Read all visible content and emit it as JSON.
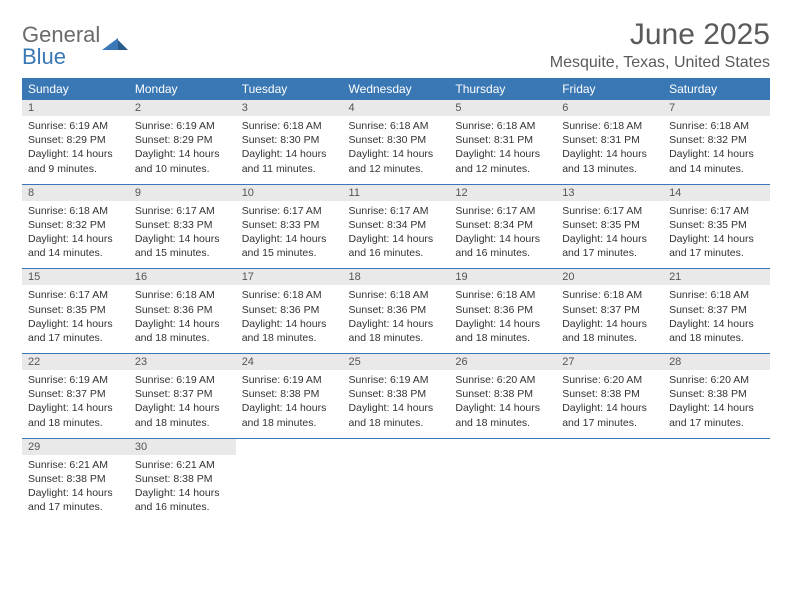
{
  "brand": {
    "part1": "General",
    "part2": "Blue"
  },
  "title": "June 2025",
  "location": "Mesquite, Texas, United States",
  "colors": {
    "header_bg": "#3a78b5",
    "header_text": "#ffffff",
    "daynum_bg": "#e9e9e9",
    "border": "#3a78b5",
    "body_text": "#333333",
    "title_text": "#5a5a5a"
  },
  "dayNames": [
    "Sunday",
    "Monday",
    "Tuesday",
    "Wednesday",
    "Thursday",
    "Friday",
    "Saturday"
  ],
  "days": [
    {
      "n": 1,
      "sr": "6:19 AM",
      "ss": "8:29 PM",
      "dl": "14 hours and 9 minutes."
    },
    {
      "n": 2,
      "sr": "6:19 AM",
      "ss": "8:29 PM",
      "dl": "14 hours and 10 minutes."
    },
    {
      "n": 3,
      "sr": "6:18 AM",
      "ss": "8:30 PM",
      "dl": "14 hours and 11 minutes."
    },
    {
      "n": 4,
      "sr": "6:18 AM",
      "ss": "8:30 PM",
      "dl": "14 hours and 12 minutes."
    },
    {
      "n": 5,
      "sr": "6:18 AM",
      "ss": "8:31 PM",
      "dl": "14 hours and 12 minutes."
    },
    {
      "n": 6,
      "sr": "6:18 AM",
      "ss": "8:31 PM",
      "dl": "14 hours and 13 minutes."
    },
    {
      "n": 7,
      "sr": "6:18 AM",
      "ss": "8:32 PM",
      "dl": "14 hours and 14 minutes."
    },
    {
      "n": 8,
      "sr": "6:18 AM",
      "ss": "8:32 PM",
      "dl": "14 hours and 14 minutes."
    },
    {
      "n": 9,
      "sr": "6:17 AM",
      "ss": "8:33 PM",
      "dl": "14 hours and 15 minutes."
    },
    {
      "n": 10,
      "sr": "6:17 AM",
      "ss": "8:33 PM",
      "dl": "14 hours and 15 minutes."
    },
    {
      "n": 11,
      "sr": "6:17 AM",
      "ss": "8:34 PM",
      "dl": "14 hours and 16 minutes."
    },
    {
      "n": 12,
      "sr": "6:17 AM",
      "ss": "8:34 PM",
      "dl": "14 hours and 16 minutes."
    },
    {
      "n": 13,
      "sr": "6:17 AM",
      "ss": "8:35 PM",
      "dl": "14 hours and 17 minutes."
    },
    {
      "n": 14,
      "sr": "6:17 AM",
      "ss": "8:35 PM",
      "dl": "14 hours and 17 minutes."
    },
    {
      "n": 15,
      "sr": "6:17 AM",
      "ss": "8:35 PM",
      "dl": "14 hours and 17 minutes."
    },
    {
      "n": 16,
      "sr": "6:18 AM",
      "ss": "8:36 PM",
      "dl": "14 hours and 18 minutes."
    },
    {
      "n": 17,
      "sr": "6:18 AM",
      "ss": "8:36 PM",
      "dl": "14 hours and 18 minutes."
    },
    {
      "n": 18,
      "sr": "6:18 AM",
      "ss": "8:36 PM",
      "dl": "14 hours and 18 minutes."
    },
    {
      "n": 19,
      "sr": "6:18 AM",
      "ss": "8:36 PM",
      "dl": "14 hours and 18 minutes."
    },
    {
      "n": 20,
      "sr": "6:18 AM",
      "ss": "8:37 PM",
      "dl": "14 hours and 18 minutes."
    },
    {
      "n": 21,
      "sr": "6:18 AM",
      "ss": "8:37 PM",
      "dl": "14 hours and 18 minutes."
    },
    {
      "n": 22,
      "sr": "6:19 AM",
      "ss": "8:37 PM",
      "dl": "14 hours and 18 minutes."
    },
    {
      "n": 23,
      "sr": "6:19 AM",
      "ss": "8:37 PM",
      "dl": "14 hours and 18 minutes."
    },
    {
      "n": 24,
      "sr": "6:19 AM",
      "ss": "8:38 PM",
      "dl": "14 hours and 18 minutes."
    },
    {
      "n": 25,
      "sr": "6:19 AM",
      "ss": "8:38 PM",
      "dl": "14 hours and 18 minutes."
    },
    {
      "n": 26,
      "sr": "6:20 AM",
      "ss": "8:38 PM",
      "dl": "14 hours and 18 minutes."
    },
    {
      "n": 27,
      "sr": "6:20 AM",
      "ss": "8:38 PM",
      "dl": "14 hours and 17 minutes."
    },
    {
      "n": 28,
      "sr": "6:20 AM",
      "ss": "8:38 PM",
      "dl": "14 hours and 17 minutes."
    },
    {
      "n": 29,
      "sr": "6:21 AM",
      "ss": "8:38 PM",
      "dl": "14 hours and 17 minutes."
    },
    {
      "n": 30,
      "sr": "6:21 AM",
      "ss": "8:38 PM",
      "dl": "14 hours and 16 minutes."
    }
  ],
  "labels": {
    "sunrise": "Sunrise:",
    "sunset": "Sunset:",
    "daylight": "Daylight:"
  }
}
